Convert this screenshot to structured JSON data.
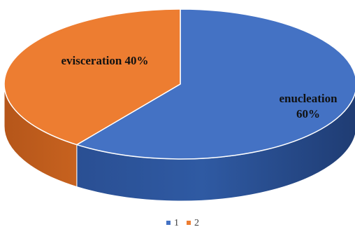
{
  "chart_data": {
    "type": "pie",
    "three_d": true,
    "title": "",
    "categories": [
      "1",
      "2"
    ],
    "values": [
      60,
      40
    ],
    "slice_labels": [
      [
        "enucleation",
        "60%"
      ],
      [
        "evisceration 40%"
      ]
    ],
    "colors": [
      "#4472C4",
      "#ED7D31"
    ],
    "legend": {
      "position": "bottom",
      "entries": [
        "1",
        "2"
      ]
    }
  }
}
